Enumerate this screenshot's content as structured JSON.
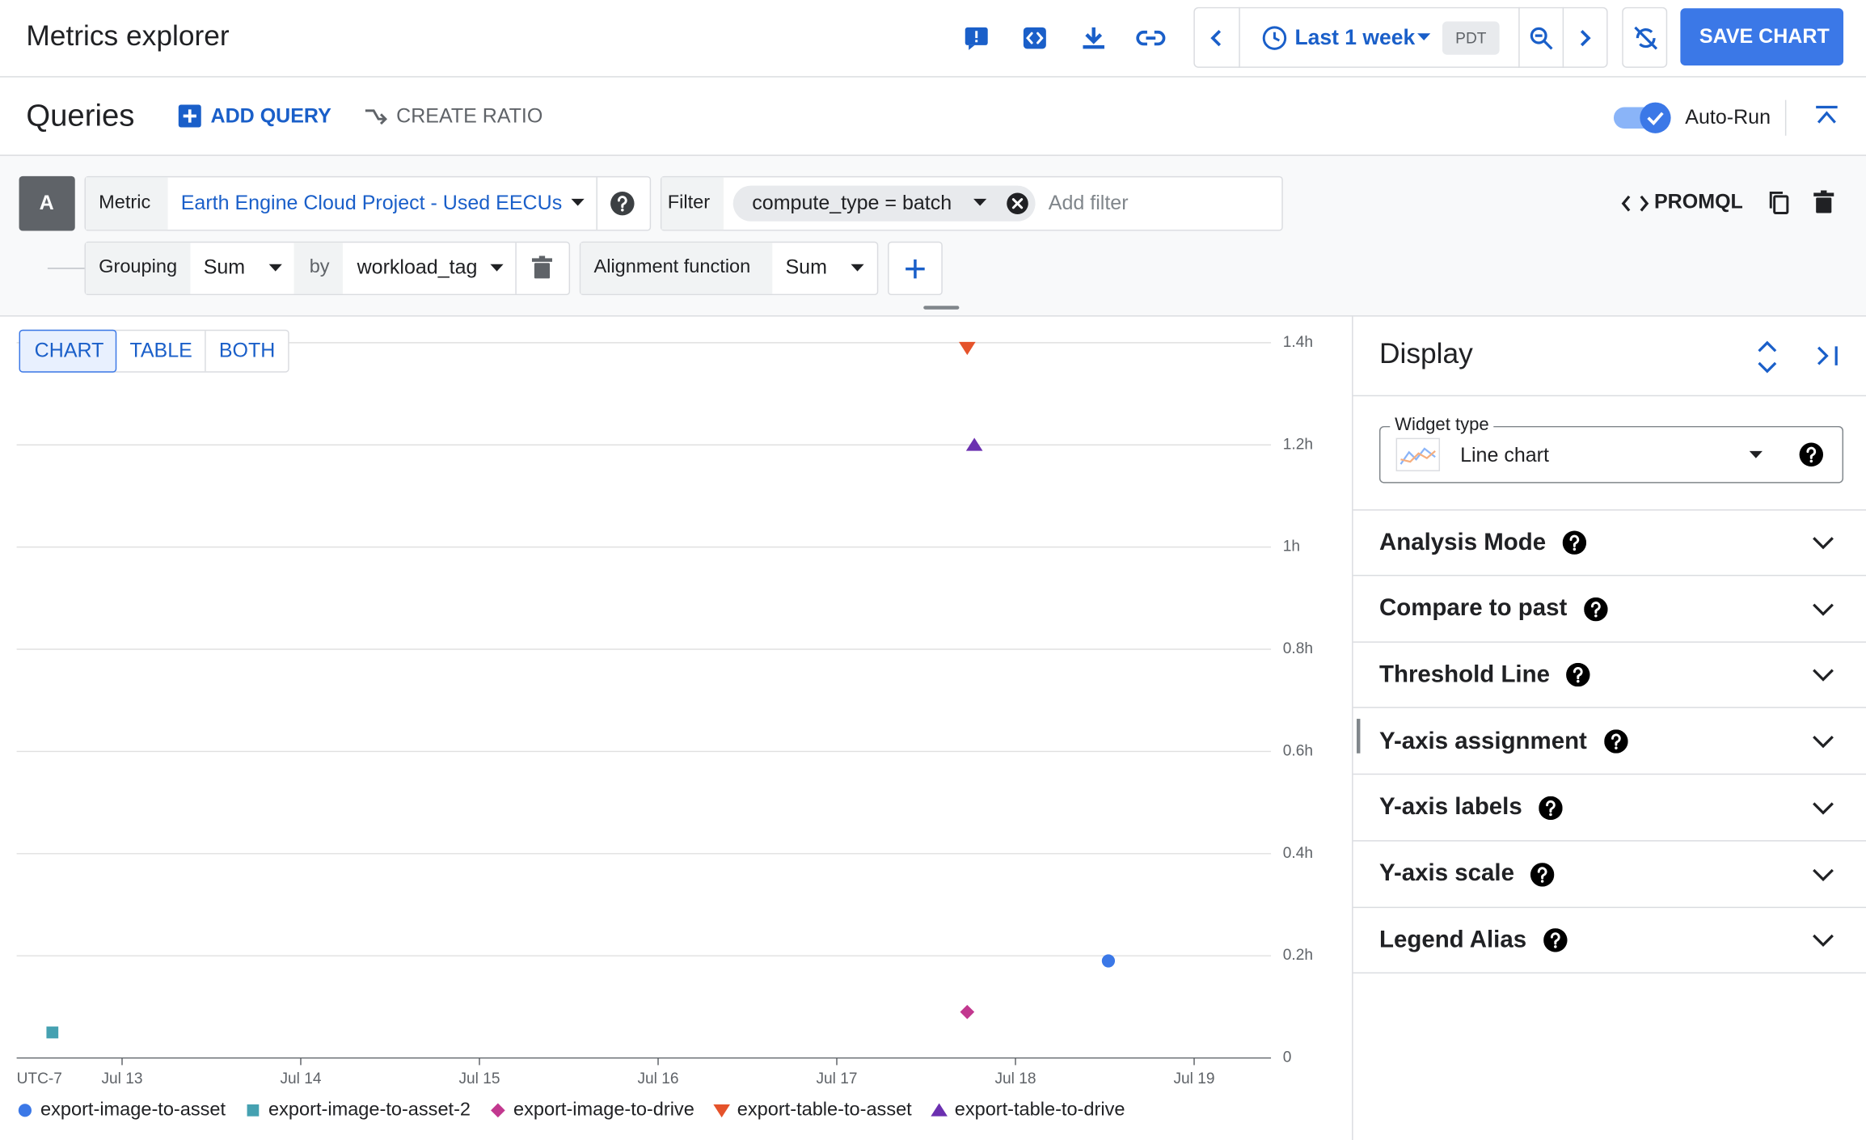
{
  "header": {
    "title": "Metrics explorer",
    "time_range": "Last 1 week",
    "timezone": "PDT",
    "save_button": "SAVE CHART"
  },
  "queries": {
    "title": "Queries",
    "add_query": "ADD QUERY",
    "create_ratio": "CREATE RATIO",
    "auto_run": "Auto-Run"
  },
  "query": {
    "id": "A",
    "metric_label": "Metric",
    "metric": "Earth Engine Cloud Project - Used EECUs",
    "filter_label": "Filter",
    "filter": "compute_type = batch",
    "add_filter": "Add filter",
    "promql": "PROMQL",
    "grouping_label": "Grouping",
    "grouping": "Sum",
    "by": "by",
    "group_by": "workload_tag",
    "alignment_label": "Alignment function",
    "alignment": "Sum"
  },
  "view_tabs": [
    "CHART",
    "TABLE",
    "BOTH"
  ],
  "display": {
    "title": "Display",
    "widget_type_label": "Widget type",
    "widget_type": "Line chart",
    "sections": [
      "Analysis Mode",
      "Compare to past",
      "Threshold Line",
      "Y-axis assignment",
      "Y-axis labels",
      "Y-axis scale",
      "Legend Alias"
    ]
  },
  "chart_data": {
    "type": "scatter",
    "xlabel": "UTC-7",
    "xlim": [
      12.41,
      19.43
    ],
    "xticks": [
      {
        "value": 13,
        "label": "Jul 13"
      },
      {
        "value": 14,
        "label": "Jul 14"
      },
      {
        "value": 15,
        "label": "Jul 15"
      },
      {
        "value": 16,
        "label": "Jul 16"
      },
      {
        "value": 17,
        "label": "Jul 17"
      },
      {
        "value": 18,
        "label": "Jul 18"
      },
      {
        "value": 19,
        "label": "Jul 19"
      }
    ],
    "ylim": [
      0,
      1.4
    ],
    "yticks": [
      0,
      {
        "value": 0.2,
        "label": "0.2h"
      },
      {
        "value": 0.4,
        "label": "0.4h"
      },
      {
        "value": 0.6,
        "label": "0.6h"
      },
      {
        "value": 0.8,
        "label": "0.8h"
      },
      {
        "value": 1,
        "label": "1h"
      },
      {
        "value": 1.2,
        "label": "1.2h"
      },
      {
        "value": 1.4,
        "label": "1.4h"
      }
    ],
    "grid": true,
    "legend": "bottom",
    "series": [
      {
        "name": "export-image-to-asset",
        "color": "#3b78e7",
        "marker": "circle",
        "x": [
          18.52
        ],
        "values": [
          0.19
        ]
      },
      {
        "name": "export-image-to-asset-2",
        "color": "#45a1b1",
        "marker": "square",
        "x": [
          12.61
        ],
        "values": [
          0.05
        ]
      },
      {
        "name": "export-image-to-drive",
        "color": "#c2388f",
        "marker": "diamond",
        "x": [
          17.73
        ],
        "values": [
          0.09
        ]
      },
      {
        "name": "export-table-to-asset",
        "color": "#e5532b",
        "marker": "triangle-down",
        "x": [
          17.73
        ],
        "values": [
          1.39
        ]
      },
      {
        "name": "export-table-to-drive",
        "color": "#6b30b0",
        "marker": "triangle-up",
        "x": [
          17.77
        ],
        "values": [
          1.2
        ]
      }
    ]
  }
}
